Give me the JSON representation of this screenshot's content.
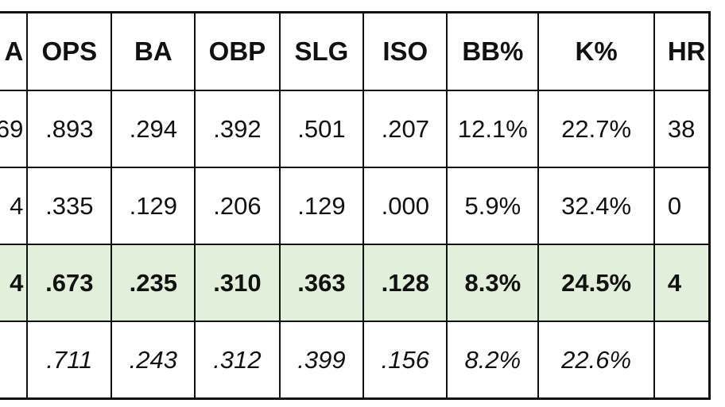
{
  "table": {
    "headers": [
      "A",
      "OPS",
      "BA",
      "OBP",
      "SLG",
      "ISO",
      "BB%",
      "K%",
      "HR"
    ],
    "rows": [
      [
        "69",
        ".893",
        ".294",
        ".392",
        ".501",
        ".207",
        "12.1%",
        "22.7%",
        "38"
      ],
      [
        "4",
        ".335",
        ".129",
        ".206",
        ".129",
        ".000",
        "5.9%",
        "32.4%",
        "0"
      ],
      [
        "4",
        ".673",
        ".235",
        ".310",
        ".363",
        ".128",
        "8.3%",
        "24.5%",
        "4"
      ],
      [
        "",
        ".711",
        ".243",
        ".312",
        ".399",
        ".156",
        "8.2%",
        "22.6%",
        ""
      ]
    ],
    "highlight_color": "#e2efda",
    "highlighted_row": 2,
    "italic_row": 3
  }
}
